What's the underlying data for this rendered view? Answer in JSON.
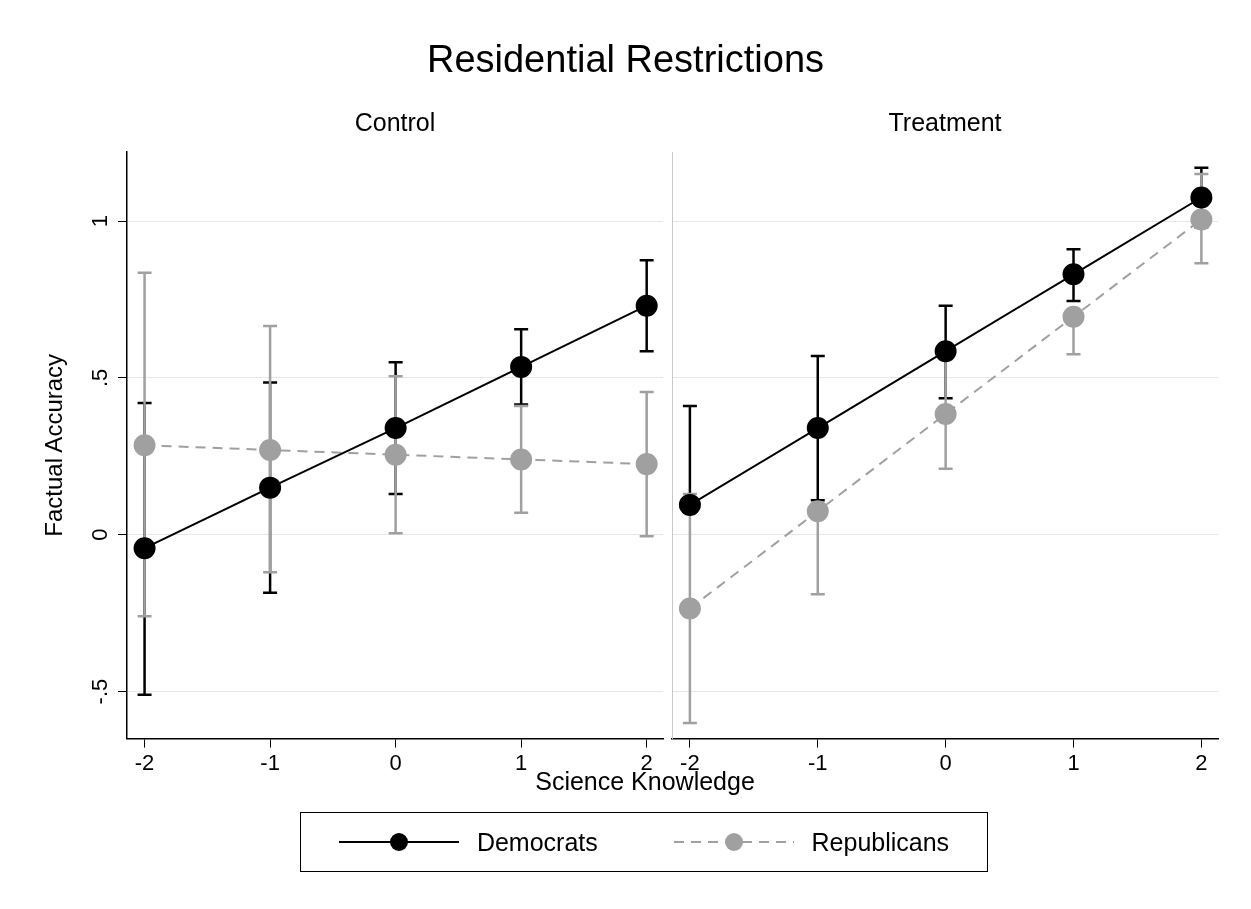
{
  "chart_data": [
    {
      "type": "line",
      "title": "Residential Restrictions",
      "subtitle": "Control",
      "xlabel": "Science Knowledge",
      "ylabel": "Factual Accuracy",
      "x": [
        -2,
        -1,
        0,
        1,
        2
      ],
      "xlim": [
        -2.14,
        2.13
      ],
      "xticks": [
        -2,
        -1,
        0,
        1,
        2
      ],
      "ylim": [
        -0.65,
        1.22
      ],
      "yticks": [
        {
          "value": -0.5,
          "label": "-.5"
        },
        0,
        {
          "value": 0.5,
          "label": ".5"
        },
        1
      ],
      "grid": "y",
      "legend": "bottom",
      "marker": "circle",
      "series": [
        {
          "name": "Democrats",
          "color": "#000000",
          "line_style": "solid",
          "values": [
            -0.043,
            0.15,
            0.34,
            0.535,
            0.73
          ],
          "errors": [
            [
              -0.51,
              0.42
            ],
            [
              -0.185,
              0.485
            ],
            [
              0.13,
              0.55
            ],
            [
              0.415,
              0.655
            ],
            [
              0.585,
              0.875
            ]
          ]
        },
        {
          "name": "Republicans",
          "color": "#a0a0a0",
          "line_style": "dashed",
          "values": [
            0.285,
            0.27,
            0.255,
            0.24,
            0.225
          ],
          "errors": [
            [
              -0.26,
              0.835
            ],
            [
              -0.12,
              0.665
            ],
            [
              0.005,
              0.505
            ],
            [
              0.07,
              0.41
            ],
            [
              -0.005,
              0.455
            ]
          ]
        }
      ]
    },
    {
      "type": "line",
      "subtitle": "Treatment",
      "x": [
        -2,
        -1,
        0,
        1,
        2
      ],
      "xlim": [
        -2.14,
        2.13
      ],
      "xticks": [
        -2,
        -1,
        0,
        1,
        2
      ],
      "ylim": [
        -0.65,
        1.22
      ],
      "yticks": [
        -0.5,
        0,
        0.5,
        1
      ],
      "grid": "y",
      "tick_labels": "x",
      "marker": "circle",
      "series": [
        {
          "color": "#000000",
          "line_style": "solid",
          "values": [
            0.095,
            0.34,
            0.585,
            0.83,
            1.075
          ],
          "errors": [
            [
              0.095,
              0.41
            ],
            [
              0.11,
              0.57
            ],
            [
              0.435,
              0.73
            ],
            [
              0.745,
              0.91
            ],
            [
              0.98,
              1.17
            ]
          ]
        },
        {
          "color": "#a0a0a0",
          "line_style": "dashed",
          "values": [
            -0.235,
            0.075,
            0.385,
            0.695,
            1.005
          ],
          "errors": [
            [
              -0.6,
              0.13
            ],
            [
              -0.19,
              0.075
            ],
            [
              0.21,
              0.56
            ],
            [
              0.575,
              0.695
            ],
            [
              0.865,
              1.15
            ]
          ]
        }
      ]
    }
  ]
}
